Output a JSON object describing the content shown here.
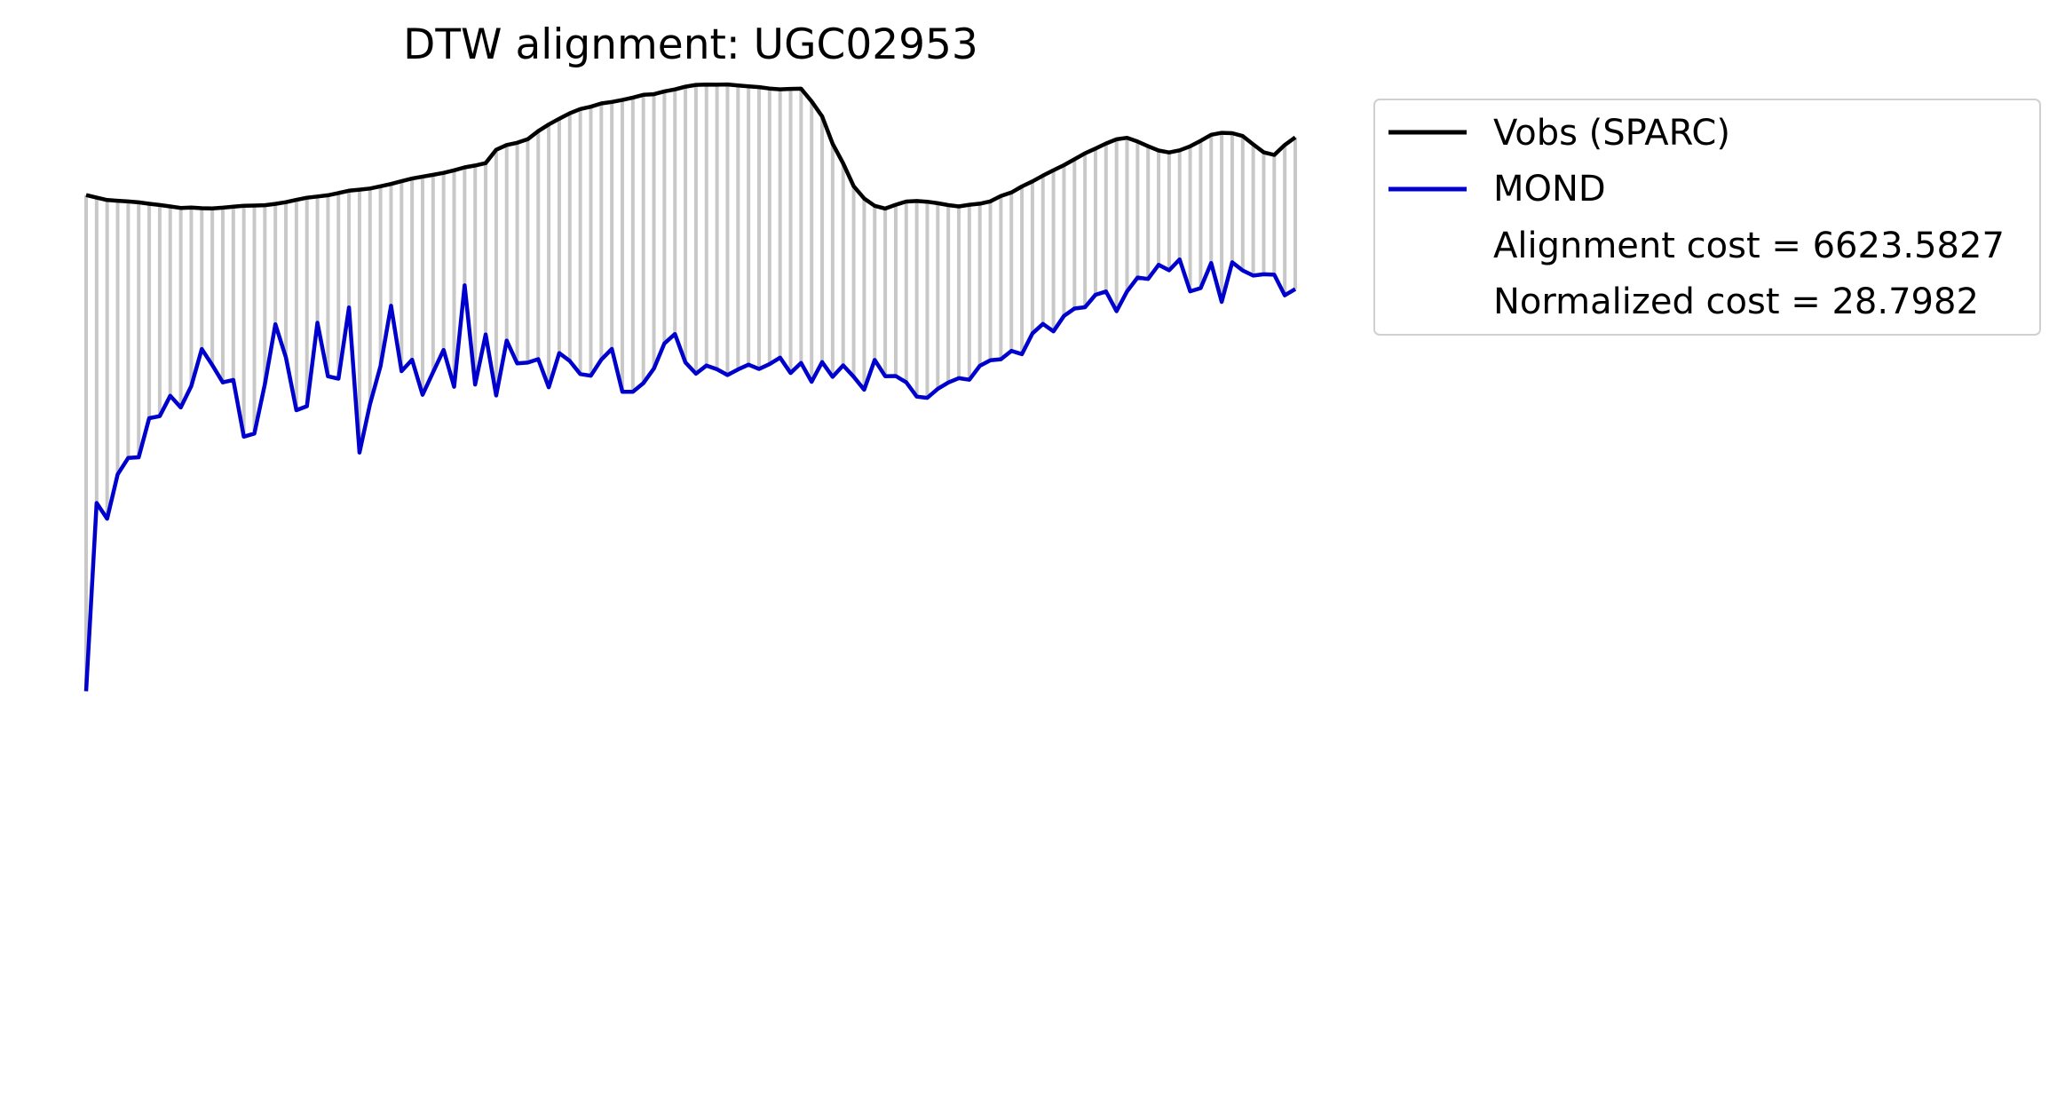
{
  "chart_data": {
    "type": "line",
    "title": "DTW alignment: UGC02953",
    "xlabel": "",
    "ylabel": "",
    "axes_visible": false,
    "grid": false,
    "legend_position": "outside-right-top",
    "x": [
      0,
      1,
      2,
      3,
      4,
      5,
      6,
      7,
      8,
      9,
      10,
      11,
      12,
      13,
      14,
      15,
      16,
      17,
      18,
      19,
      20,
      21,
      22,
      23,
      24,
      25,
      26,
      27,
      28,
      29,
      30,
      31,
      32,
      33,
      34,
      35,
      36,
      37,
      38,
      39,
      40,
      41,
      42,
      43,
      44,
      45,
      46,
      47,
      48,
      49,
      50,
      51,
      52,
      53,
      54,
      55,
      56,
      57,
      58,
      59,
      60,
      61,
      62,
      63,
      64,
      65,
      66,
      67,
      68,
      69,
      70,
      71,
      72,
      73,
      74,
      75,
      76,
      77,
      78,
      79,
      80,
      81,
      82,
      83,
      84,
      85,
      86,
      87,
      88,
      89,
      90,
      91,
      92,
      93,
      94,
      95,
      96,
      97,
      98,
      99,
      100,
      101,
      102,
      103,
      104,
      105,
      106,
      107,
      108,
      109,
      110,
      111,
      112,
      113,
      114,
      115
    ],
    "series": [
      {
        "name": "Vobs (SPARC)",
        "color": "#000000",
        "values": [
          219.7,
          222.6,
          225.3,
          226.1,
          226.9,
          227.9,
          229.5,
          230.9,
          232.5,
          234.2,
          233.7,
          234.5,
          234.7,
          233.9,
          232.8,
          231.7,
          231.5,
          231.1,
          229.6,
          227.7,
          225.1,
          222.7,
          221.3,
          219.9,
          217.4,
          214.8,
          213.6,
          212.3,
          209.8,
          207.2,
          204.1,
          201.1,
          198.9,
          196.9,
          194.7,
          191.8,
          188.5,
          186.4,
          183.7,
          168.7,
          163.3,
          160.8,
          156.8,
          147.7,
          140.2,
          133.7,
          127.6,
          122.8,
          120.2,
          116.5,
          114.8,
          112.6,
          109.9,
          106.8,
          106.1,
          102.9,
          100.7,
          97.6,
          95.6,
          95.2,
          95.4,
          95.1,
          96.2,
          97.2,
          98.1,
          99.7,
          100.6,
          100.1,
          99.9,
          114.2,
          131.1,
          161.9,
          184.0,
          209.7,
          223.6,
          231.8,
          234.9,
          230.6,
          227.0,
          226.4,
          227.2,
          228.9,
          231.0,
          232.5,
          230.6,
          229.4,
          226.8,
          220.8,
          216.8,
          210.0,
          204.3,
          197.8,
          191.8,
          186.0,
          179.4,
          172.7,
          167.3,
          161.6,
          156.9,
          155.2,
          159.4,
          164.7,
          169.5,
          171.7,
          169.3,
          164.8,
          158.6,
          151.8,
          149.6,
          150.0,
          153.2,
          162.6,
          171.6,
          174.5,
          163.3,
          154.7
        ]
      },
      {
        "name": "MOND",
        "color": "#0000cc",
        "values": [
          778.5,
          566.5,
          584.2,
          534.3,
          515.8,
          515.0,
          471.0,
          468.7,
          445.8,
          458.9,
          434.9,
          393.1,
          411.2,
          430.7,
          427.9,
          491.8,
          488.3,
          432.7,
          365.2,
          402.5,
          462.0,
          457.5,
          363.5,
          423.8,
          426.5,
          346.3,
          509.7,
          455.2,
          412.3,
          344.4,
          418.0,
          405.1,
          444.6,
          419.2,
          394.1,
          435.6,
          321.4,
          433.1,
          376.7,
          445.4,
          383.6,
          409.3,
          408.4,
          404.5,
          436.2,
          397.7,
          406.6,
          421.3,
          423.2,
          405.0,
          393.0,
          441.2,
          441.2,
          431.5,
          415.1,
          386.8,
          376.2,
          408.2,
          420.9,
          411.7,
          415.9,
          422.4,
          416.1,
          410.7,
          415.6,
          410.1,
          402.8,
          420.1,
          408.8,
          430.0,
          407.8,
          424.4,
          411.5,
          424.3,
          438.9,
          405.4,
          423.7,
          423.5,
          430.6,
          446.7,
          448.1,
          437.9,
          430.8,
          425.9,
          427.7,
          412.0,
          405.8,
          404.6,
          395.2,
          398.9,
          375.6,
          364.8,
          373.2,
          355.8,
          347.5,
          346.0,
          332.0,
          328.3,
          350.5,
          328.2,
          312.6,
          314.2,
          298.3,
          304.4,
          292.2,
          328.1,
          324.5,
          296.2,
          340.0,
          295.4,
          304.6,
          310.4,
          308.9,
          309.4,
          332.6,
          325.6
        ]
      }
    ],
    "alignment_connector_color": "#c8c8c8",
    "annotations": [
      "Alignment cost = 6623.5827",
      "Normalized cost = 28.7982"
    ]
  }
}
